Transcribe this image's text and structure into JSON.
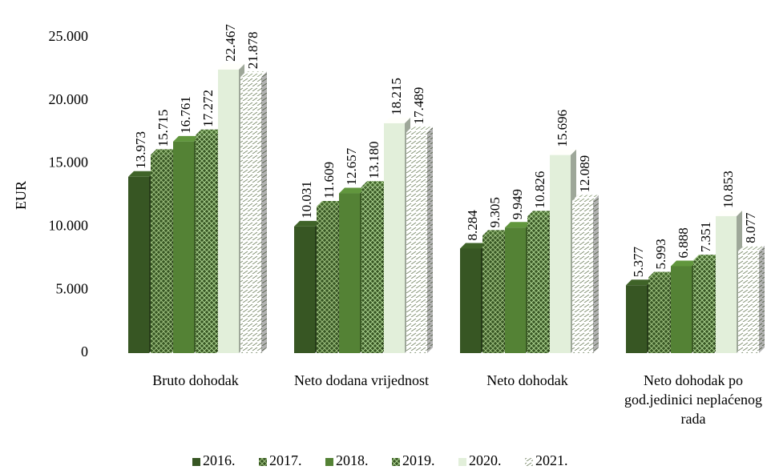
{
  "chart_data": {
    "type": "bar3d",
    "ylabel": "EUR",
    "categories": [
      "Bruto dohodak",
      "Neto dodana vrijednost",
      "Neto dohodak",
      "Neto dohodak po god.jedinici neplaćenog rada"
    ],
    "series": [
      {
        "name": "2016.",
        "color": "#375623",
        "pattern": "solid",
        "values": [
          13973,
          10031,
          8284,
          5377
        ],
        "value_labels": [
          "13.973",
          "10.031",
          "8.284",
          "5.377"
        ]
      },
      {
        "name": "2017.",
        "color": "#375623",
        "pattern": "crosshatch",
        "values": [
          15715,
          11609,
          9305,
          5993
        ],
        "value_labels": [
          "15.715",
          "11.609",
          "9.305",
          "5.993"
        ]
      },
      {
        "name": "2018.",
        "color": "#548235",
        "pattern": "solid",
        "values": [
          16761,
          12657,
          9949,
          6888
        ],
        "value_labels": [
          "16.761",
          "12.657",
          "9.949",
          "6.888"
        ]
      },
      {
        "name": "2019.",
        "color": "#375623",
        "pattern": "diamond",
        "values": [
          17272,
          13180,
          10826,
          7351
        ],
        "value_labels": [
          "17.272",
          "13.180",
          "10.826",
          "7.351"
        ]
      },
      {
        "name": "2020.",
        "color": "#e2efda",
        "pattern": "solid",
        "values": [
          22467,
          18215,
          15696,
          10853
        ],
        "value_labels": [
          "22.467",
          "18.215",
          "15.696",
          "10.853"
        ]
      },
      {
        "name": "2021.",
        "color": "#7f8f70",
        "pattern": "dash",
        "values": [
          21878,
          17489,
          12089,
          8077
        ],
        "value_labels": [
          "21.878",
          "17.489",
          "12.089",
          "8.077"
        ]
      }
    ],
    "ylim": [
      0,
      25000
    ],
    "yticks": [
      0,
      {
        "value": 5000,
        "label": "5.000"
      },
      {
        "value": 10000,
        "label": "10.000"
      },
      {
        "value": 15000,
        "label": "15.000"
      },
      {
        "value": 20000,
        "label": "20.000"
      },
      {
        "value": 25000,
        "label": "25.000"
      }
    ]
  }
}
